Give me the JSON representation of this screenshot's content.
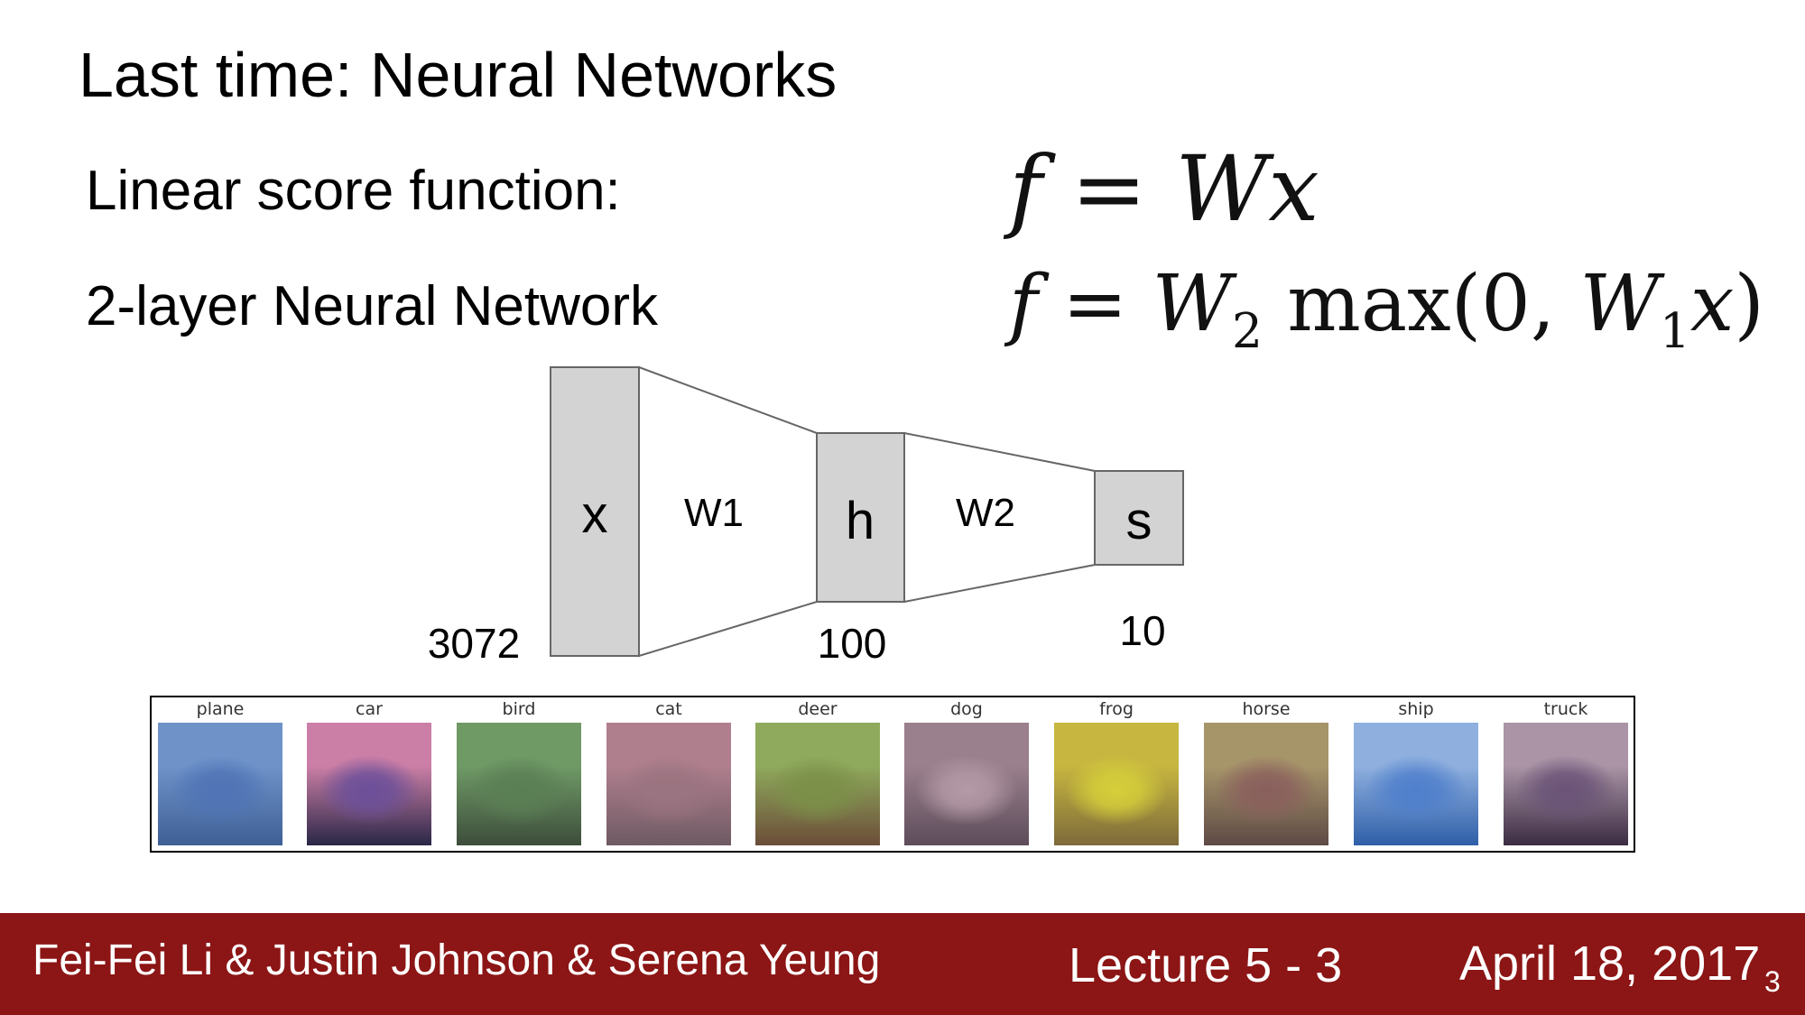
{
  "title": "Last time: Neural Networks",
  "rows": [
    {
      "label": "Linear score function:"
    },
    {
      "label": "2-layer Neural Network"
    }
  ],
  "formulas": {
    "linear": {
      "lhs": "f",
      "eq": "=",
      "w": "W",
      "x": "x"
    },
    "two_layer": {
      "lhs": "f",
      "eq": "=",
      "w2": "W",
      "w2_sub": "2",
      "fn": "max(0,",
      "w1": "W",
      "w1_sub": "1",
      "x": "x",
      "close": ")"
    }
  },
  "network": {
    "layers": [
      {
        "symbol": "x",
        "size": "3072"
      },
      {
        "symbol": "h",
        "size": "100"
      },
      {
        "symbol": "s",
        "size": "10"
      }
    ],
    "weights": [
      "W1",
      "W2"
    ],
    "box_fill": "#d3d3d3",
    "stroke": "#666666"
  },
  "class_templates": [
    {
      "label": "plane",
      "colors": [
        "#6f93c9",
        "#4f73b5",
        "#3e5f96"
      ]
    },
    {
      "label": "car",
      "colors": [
        "#cc7fa6",
        "#6b4f9a",
        "#2a2747"
      ]
    },
    {
      "label": "bird",
      "colors": [
        "#6f9a66",
        "#5b7f55",
        "#3d4d3b"
      ]
    },
    {
      "label": "cat",
      "colors": [
        "#b07f8e",
        "#9a7480",
        "#6e5a63"
      ]
    },
    {
      "label": "deer",
      "colors": [
        "#8faa5d",
        "#7b9048",
        "#6b4d38"
      ]
    },
    {
      "label": "dog",
      "colors": [
        "#9a7f8c",
        "#b49aa6",
        "#5d4c5a"
      ]
    },
    {
      "label": "frog",
      "colors": [
        "#c7b640",
        "#d6cf3a",
        "#7d6a3a"
      ]
    },
    {
      "label": "horse",
      "colors": [
        "#a7956a",
        "#8a5f5d",
        "#5e4a45"
      ]
    },
    {
      "label": "ship",
      "colors": [
        "#8fb0df",
        "#4f7fcc",
        "#2f5fa8"
      ]
    },
    {
      "label": "truck",
      "colors": [
        "#aa94a6",
        "#6a5377",
        "#3b2c43"
      ]
    }
  ],
  "footer": {
    "authors": "Fei-Fei Li & Justin Johnson & Serena Yeung",
    "lecture": "Lecture 5 -  3",
    "date": "April 18, 2017",
    "page": "3",
    "bg_color": "#8c1515"
  }
}
